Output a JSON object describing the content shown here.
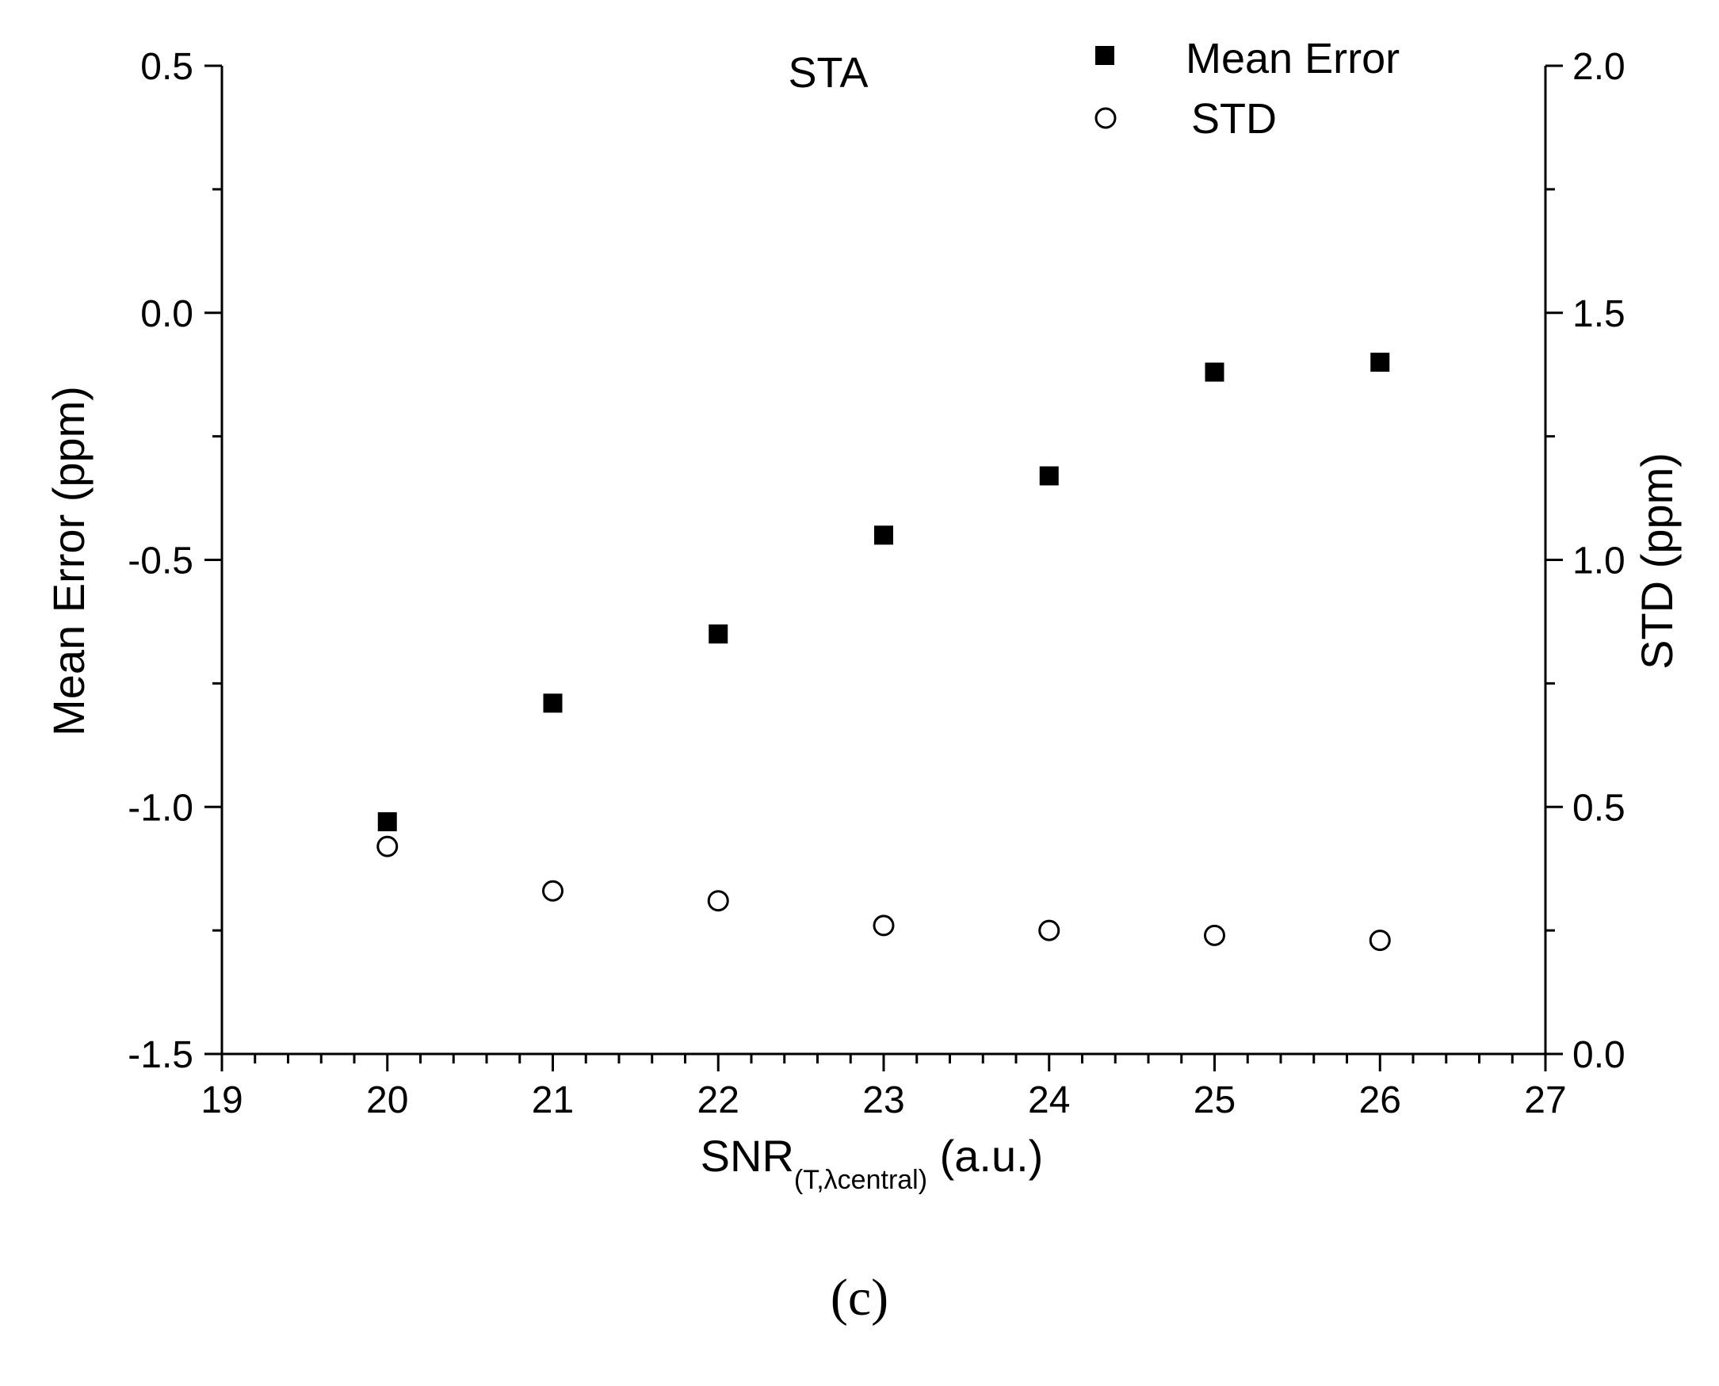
{
  "chart_data": {
    "type": "scatter",
    "title": "STA",
    "panel_label": "(c)",
    "xlabel": {
      "main": "SNR",
      "subscript": "(T,λcentral)",
      "suffix": " (a.u.)"
    },
    "ylabel": "Mean Error (ppm)",
    "y2label": "STD (ppm)",
    "xlim": [
      19,
      27
    ],
    "ylim": [
      -1.5,
      0.5
    ],
    "y2lim": [
      0.0,
      2.0
    ],
    "x_ticks": [
      "19",
      "20",
      "21",
      "22",
      "23",
      "24",
      "25",
      "26",
      "27"
    ],
    "y_ticks": [
      "-1.5",
      "-1.0",
      "-0.5",
      "0.0",
      "0.5"
    ],
    "y2_ticks": [
      "0.0",
      "0.5",
      "1.0",
      "1.5",
      "2.0"
    ],
    "legend_position": "top-right",
    "grid": false,
    "series": [
      {
        "name": "Mean Error",
        "axis": "left",
        "marker": "filled-square",
        "color": "#000000",
        "x": [
          20,
          21,
          22,
          23,
          24,
          25,
          26
        ],
        "y": [
          -1.03,
          -0.79,
          -0.65,
          -0.45,
          -0.33,
          -0.12,
          -0.1
        ]
      },
      {
        "name": "STD",
        "axis": "right",
        "marker": "open-circle",
        "color": "#000000",
        "x": [
          20,
          21,
          22,
          23,
          24,
          25,
          26
        ],
        "y": [
          0.42,
          0.33,
          0.31,
          0.26,
          0.25,
          0.24,
          0.23
        ]
      }
    ]
  }
}
